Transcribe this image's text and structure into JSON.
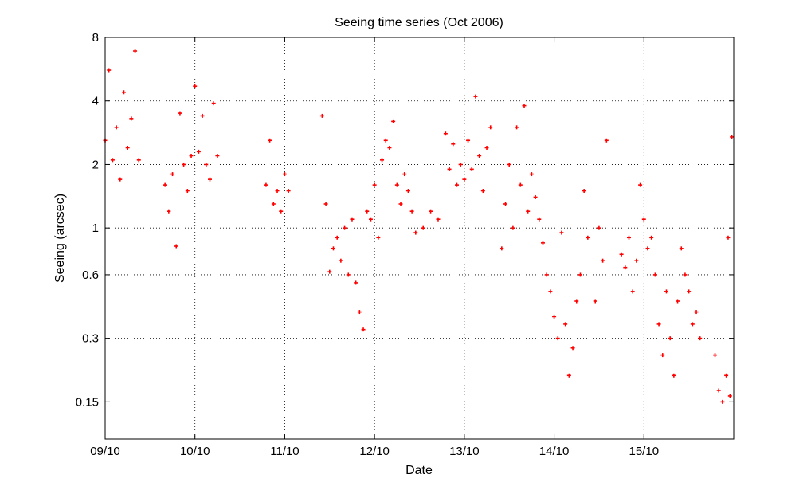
{
  "chart_data": {
    "type": "scatter",
    "title": "Seeing time series (Oct 2006)",
    "xlabel": "Date",
    "ylabel": "Seeing (arcsec)",
    "y_scale": "log",
    "ylim": [
      0.1,
      8
    ],
    "xlim": [
      "2006-10-09 00:00",
      "2006-10-16 00:00"
    ],
    "x_ticks": [
      {
        "label": "09/10",
        "date": "2006-10-09"
      },
      {
        "label": "10/10",
        "date": "2006-10-10"
      },
      {
        "label": "11/10",
        "date": "2006-10-11"
      },
      {
        "label": "12/10",
        "date": "2006-10-12"
      },
      {
        "label": "13/10",
        "date": "2006-10-13"
      },
      {
        "label": "14/10",
        "date": "2006-10-14"
      },
      {
        "label": "15/10",
        "date": "2006-10-15"
      }
    ],
    "y_ticks": [
      0.15,
      0.3,
      0.6,
      1,
      2,
      4,
      8
    ],
    "grid": true,
    "marker": "+",
    "marker_color": "#ff0000",
    "series": [
      {
        "points": [
          [
            "2006-10-09 00:00",
            2.6
          ],
          [
            "2006-10-09 01:00",
            5.6
          ],
          [
            "2006-10-09 02:00",
            2.1
          ],
          [
            "2006-10-09 03:00",
            3.0
          ],
          [
            "2006-10-09 04:00",
            1.7
          ],
          [
            "2006-10-09 05:00",
            4.4
          ],
          [
            "2006-10-09 06:00",
            2.4
          ],
          [
            "2006-10-09 07:00",
            3.3
          ],
          [
            "2006-10-09 08:00",
            6.9
          ],
          [
            "2006-10-09 09:00",
            2.1
          ],
          [
            "2006-10-09 16:00",
            1.6
          ],
          [
            "2006-10-09 17:00",
            1.2
          ],
          [
            "2006-10-09 18:00",
            1.8
          ],
          [
            "2006-10-09 19:00",
            0.82
          ],
          [
            "2006-10-09 20:00",
            3.5
          ],
          [
            "2006-10-09 21:00",
            2.0
          ],
          [
            "2006-10-09 22:00",
            1.5
          ],
          [
            "2006-10-09 23:00",
            2.2
          ],
          [
            "2006-10-10 00:00",
            4.7
          ],
          [
            "2006-10-10 01:00",
            2.3
          ],
          [
            "2006-10-10 02:00",
            3.4
          ],
          [
            "2006-10-10 03:00",
            2.0
          ],
          [
            "2006-10-10 04:00",
            1.7
          ],
          [
            "2006-10-10 05:00",
            3.9
          ],
          [
            "2006-10-10 06:00",
            2.2
          ],
          [
            "2006-10-10 19:00",
            1.6
          ],
          [
            "2006-10-10 20:00",
            2.6
          ],
          [
            "2006-10-10 21:00",
            1.3
          ],
          [
            "2006-10-10 22:00",
            1.5
          ],
          [
            "2006-10-10 23:00",
            1.2
          ],
          [
            "2006-10-11 00:00",
            1.8
          ],
          [
            "2006-10-11 01:00",
            1.5
          ],
          [
            "2006-10-11 10:00",
            3.4
          ],
          [
            "2006-10-11 11:00",
            1.3
          ],
          [
            "2006-10-11 12:00",
            0.62
          ],
          [
            "2006-10-11 13:00",
            0.8
          ],
          [
            "2006-10-11 14:00",
            0.9
          ],
          [
            "2006-10-11 15:00",
            0.7
          ],
          [
            "2006-10-11 16:00",
            1.0
          ],
          [
            "2006-10-11 17:00",
            0.6
          ],
          [
            "2006-10-11 18:00",
            1.1
          ],
          [
            "2006-10-11 19:00",
            0.55
          ],
          [
            "2006-10-11 20:00",
            0.4
          ],
          [
            "2006-10-11 21:00",
            0.33
          ],
          [
            "2006-10-11 22:00",
            1.2
          ],
          [
            "2006-10-11 23:00",
            1.1
          ],
          [
            "2006-10-12 00:00",
            1.6
          ],
          [
            "2006-10-12 01:00",
            0.9
          ],
          [
            "2006-10-12 02:00",
            2.1
          ],
          [
            "2006-10-12 03:00",
            2.6
          ],
          [
            "2006-10-12 04:00",
            2.4
          ],
          [
            "2006-10-12 05:00",
            3.2
          ],
          [
            "2006-10-12 06:00",
            1.6
          ],
          [
            "2006-10-12 07:00",
            1.3
          ],
          [
            "2006-10-12 08:00",
            1.8
          ],
          [
            "2006-10-12 09:00",
            1.5
          ],
          [
            "2006-10-12 10:00",
            1.2
          ],
          [
            "2006-10-12 11:00",
            0.95
          ],
          [
            "2006-10-12 13:00",
            1.0
          ],
          [
            "2006-10-12 15:00",
            1.2
          ],
          [
            "2006-10-12 17:00",
            1.1
          ],
          [
            "2006-10-12 19:00",
            2.8
          ],
          [
            "2006-10-12 20:00",
            1.9
          ],
          [
            "2006-10-12 21:00",
            2.5
          ],
          [
            "2006-10-12 22:00",
            1.6
          ],
          [
            "2006-10-12 23:00",
            2.0
          ],
          [
            "2006-10-13 00:00",
            1.7
          ],
          [
            "2006-10-13 01:00",
            2.6
          ],
          [
            "2006-10-13 02:00",
            1.9
          ],
          [
            "2006-10-13 03:00",
            4.2
          ],
          [
            "2006-10-13 04:00",
            2.2
          ],
          [
            "2006-10-13 05:00",
            1.5
          ],
          [
            "2006-10-13 06:00",
            2.4
          ],
          [
            "2006-10-13 07:00",
            3.0
          ],
          [
            "2006-10-13 10:00",
            0.8
          ],
          [
            "2006-10-13 11:00",
            1.3
          ],
          [
            "2006-10-13 12:00",
            2.0
          ],
          [
            "2006-10-13 13:00",
            1.0
          ],
          [
            "2006-10-13 14:00",
            3.0
          ],
          [
            "2006-10-13 15:00",
            1.6
          ],
          [
            "2006-10-13 16:00",
            3.8
          ],
          [
            "2006-10-13 17:00",
            1.2
          ],
          [
            "2006-10-13 18:00",
            1.8
          ],
          [
            "2006-10-13 19:00",
            1.4
          ],
          [
            "2006-10-13 20:00",
            1.1
          ],
          [
            "2006-10-13 21:00",
            0.85
          ],
          [
            "2006-10-13 22:00",
            0.6
          ],
          [
            "2006-10-13 23:00",
            0.5
          ],
          [
            "2006-10-14 00:00",
            0.38
          ],
          [
            "2006-10-14 01:00",
            0.3
          ],
          [
            "2006-10-14 02:00",
            0.95
          ],
          [
            "2006-10-14 03:00",
            0.35
          ],
          [
            "2006-10-14 04:00",
            0.2
          ],
          [
            "2006-10-14 05:00",
            0.27
          ],
          [
            "2006-10-14 06:00",
            0.45
          ],
          [
            "2006-10-14 07:00",
            0.6
          ],
          [
            "2006-10-14 08:00",
            1.5
          ],
          [
            "2006-10-14 09:00",
            0.9
          ],
          [
            "2006-10-14 11:00",
            0.45
          ],
          [
            "2006-10-14 12:00",
            1.0
          ],
          [
            "2006-10-14 13:00",
            0.7
          ],
          [
            "2006-10-14 14:00",
            2.6
          ],
          [
            "2006-10-14 18:00",
            0.75
          ],
          [
            "2006-10-14 19:00",
            0.65
          ],
          [
            "2006-10-14 20:00",
            0.9
          ],
          [
            "2006-10-14 21:00",
            0.5
          ],
          [
            "2006-10-14 22:00",
            0.7
          ],
          [
            "2006-10-14 23:00",
            1.6
          ],
          [
            "2006-10-15 00:00",
            1.1
          ],
          [
            "2006-10-15 01:00",
            0.8
          ],
          [
            "2006-10-15 02:00",
            0.9
          ],
          [
            "2006-10-15 03:00",
            0.6
          ],
          [
            "2006-10-15 04:00",
            0.35
          ],
          [
            "2006-10-15 05:00",
            0.25
          ],
          [
            "2006-10-15 06:00",
            0.5
          ],
          [
            "2006-10-15 07:00",
            0.3
          ],
          [
            "2006-10-15 08:00",
            0.2
          ],
          [
            "2006-10-15 09:00",
            0.45
          ],
          [
            "2006-10-15 10:00",
            0.8
          ],
          [
            "2006-10-15 11:00",
            0.6
          ],
          [
            "2006-10-15 12:00",
            0.5
          ],
          [
            "2006-10-15 13:00",
            0.35
          ],
          [
            "2006-10-15 14:00",
            0.4
          ],
          [
            "2006-10-15 15:00",
            0.3
          ],
          [
            "2006-10-15 19:00",
            0.25
          ],
          [
            "2006-10-15 20:00",
            0.17
          ],
          [
            "2006-10-15 21:00",
            0.15
          ],
          [
            "2006-10-15 22:00",
            0.2
          ],
          [
            "2006-10-15 23:00",
            0.16
          ],
          [
            "2006-10-15 22:30",
            0.9
          ],
          [
            "2006-10-15 23:30",
            2.7
          ]
        ]
      }
    ]
  }
}
